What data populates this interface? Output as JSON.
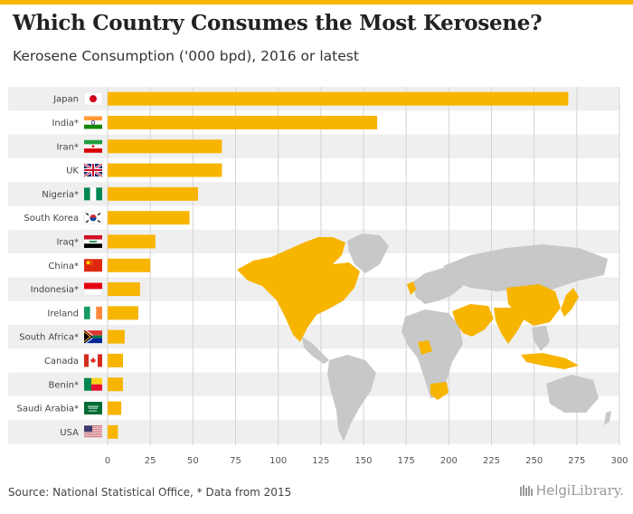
{
  "title": "Which Country Consumes the Most Kerosene?",
  "subtitle": "Kerosene Consumption ('000 bpd), 2016 or latest",
  "source": "Source: National Statistical Office, * Data from 2015",
  "brand": {
    "name": "Helgi",
    "suffix": "Library."
  },
  "colors": {
    "bar": "#f7b500",
    "accent": "#f7b500",
    "map_land": "#c8c8c8",
    "map_highlight": "#f7b500"
  },
  "chart_data": {
    "type": "bar",
    "orientation": "horizontal",
    "title": "Which Country Consumes the Most Kerosene?",
    "subtitle": "Kerosene Consumption ('000 bpd), 2016 or latest",
    "categories": [
      "Japan",
      "India*",
      "Iran*",
      "UK",
      "Nigeria*",
      "South Korea",
      "Iraq*",
      "China*",
      "Indonesia*",
      "Ireland",
      "South Africa*",
      "Canada",
      "Benin*",
      "Saudi Arabia*",
      "USA"
    ],
    "flags": [
      "japan",
      "india",
      "iran",
      "uk",
      "nigeria",
      "south-korea",
      "iraq",
      "china",
      "indonesia",
      "ireland",
      "south-africa",
      "canada",
      "benin",
      "saudi-arabia",
      "usa"
    ],
    "values": [
      270,
      158,
      67,
      67,
      53,
      48,
      28,
      25,
      19,
      18,
      10,
      9,
      9,
      8,
      6
    ],
    "xticks": [
      0,
      25,
      50,
      75,
      100,
      125,
      150,
      175,
      200,
      225,
      250,
      275,
      300
    ],
    "xlim": [
      0,
      300
    ],
    "grid": true,
    "xlabel": "",
    "ylabel": ""
  }
}
